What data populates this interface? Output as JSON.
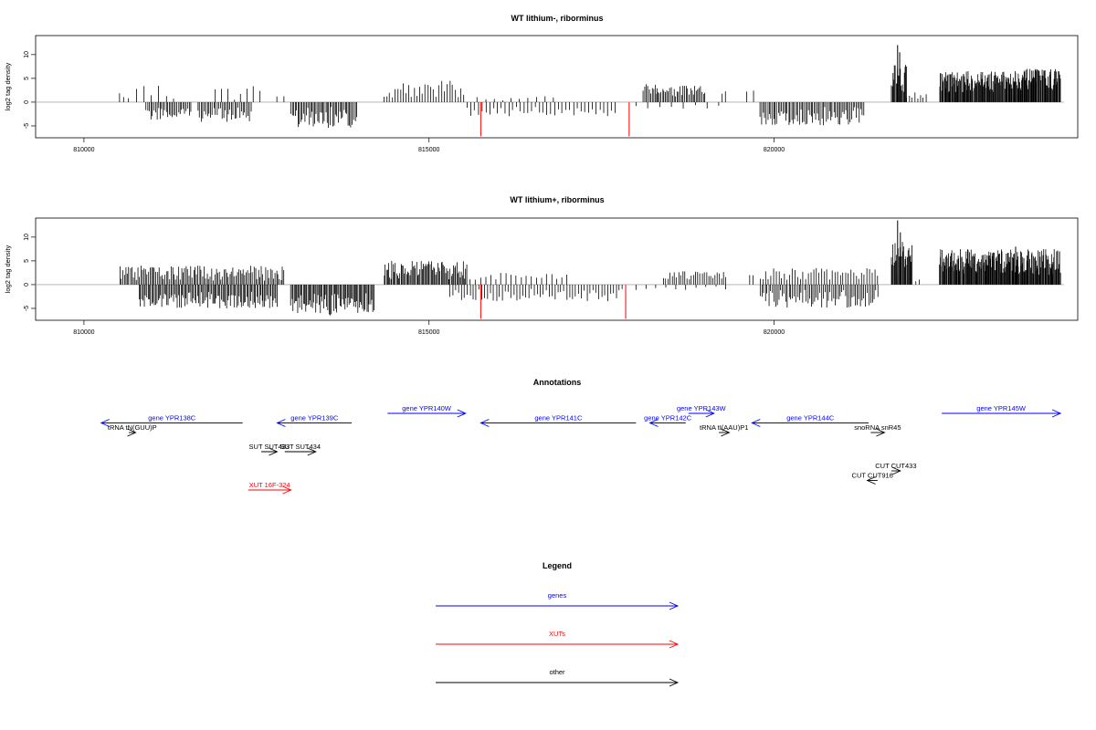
{
  "chart_data": [
    {
      "type": "bar",
      "title": "WT lithium-, riborminus",
      "ylabel": "log2 tag density",
      "xlim": [
        809300,
        824400
      ],
      "ylim": [
        -7.5,
        14
      ],
      "x_ticks": [
        810000,
        815000,
        820000
      ],
      "y_ticks": [
        -5,
        0,
        5,
        10
      ],
      "baseline_range": [
        809300,
        824200
      ],
      "segments": [
        {
          "start": 810520,
          "end": 810570,
          "strand": "+",
          "lo": 1.0,
          "hi": 2.0,
          "n": 2
        },
        {
          "start": 810650,
          "end": 811300,
          "strand": "+",
          "lo": 0.5,
          "hi": 4,
          "n": 7
        },
        {
          "start": 810900,
          "end": 811550,
          "strand": "-",
          "lo": 1.0,
          "hi": 3.8,
          "n": 30
        },
        {
          "start": 811650,
          "end": 812420,
          "strand": "-",
          "lo": 1.0,
          "hi": 4.2,
          "n": 34
        },
        {
          "start": 811900,
          "end": 812550,
          "strand": "+",
          "lo": 0.5,
          "hi": 3.5,
          "n": 8
        },
        {
          "start": 812800,
          "end": 812900,
          "strand": "+",
          "lo": 1.0,
          "hi": 2.0,
          "n": 2
        },
        {
          "start": 813000,
          "end": 813950,
          "strand": "-",
          "lo": 1.0,
          "hi": 5.5,
          "n": 48
        },
        {
          "start": 814350,
          "end": 815500,
          "strand": "+",
          "lo": 0.8,
          "hi": 4.5,
          "n": 30
        },
        {
          "start": 815550,
          "end": 817700,
          "strand": "-",
          "lo": 0.8,
          "hi": 3.0,
          "n": 40
        },
        {
          "start": 815700,
          "end": 816800,
          "strand": "+",
          "lo": 0.3,
          "hi": 1.5,
          "n": 10
        },
        {
          "start": 818100,
          "end": 818300,
          "strand": "+",
          "lo": 1.5,
          "hi": 4.2,
          "n": 10
        },
        {
          "start": 818300,
          "end": 819000,
          "strand": "+",
          "lo": 1.0,
          "hi": 3.5,
          "n": 34
        },
        {
          "start": 818000,
          "end": 819200,
          "strand": "-",
          "lo": 0.3,
          "hi": 1.5,
          "n": 8
        },
        {
          "start": 819250,
          "end": 819300,
          "strand": "+",
          "lo": 1.5,
          "hi": 2.5,
          "n": 2
        },
        {
          "start": 819600,
          "end": 819700,
          "strand": "+",
          "lo": 1.5,
          "hi": 2.5,
          "n": 2
        },
        {
          "start": 819800,
          "end": 821300,
          "strand": "-",
          "lo": 1.0,
          "hi": 5.0,
          "n": 70
        },
        {
          "start": 821700,
          "end": 821920,
          "strand": "+",
          "lo": 2.0,
          "hi": 8.5,
          "n": 20
        },
        {
          "start": 821920,
          "end": 822200,
          "strand": "+",
          "lo": 0.5,
          "hi": 2.5,
          "n": 8
        },
        {
          "start": 822400,
          "end": 823400,
          "strand": "+",
          "lo": 2.0,
          "hi": 6.5,
          "n": 110
        },
        {
          "start": 823400,
          "end": 824150,
          "strand": "+",
          "lo": 2.5,
          "hi": 7.0,
          "n": 90
        }
      ],
      "spikes": [
        {
          "x": 821790,
          "value": 12.0
        },
        {
          "x": 821820,
          "value": 10.5
        }
      ],
      "highlights": [
        {
          "x": 815750,
          "value": -7.2,
          "color": "#ff0000"
        },
        {
          "x": 817900,
          "value": -7.2,
          "color": "#ff0000"
        }
      ]
    },
    {
      "type": "bar",
      "title": "WT lithium+, riborminus",
      "ylabel": "log2 tag density",
      "xlim": [
        809300,
        824400
      ],
      "ylim": [
        -7.5,
        14
      ],
      "x_ticks": [
        810000,
        815000,
        820000
      ],
      "y_ticks": [
        -5,
        0,
        5,
        10
      ],
      "baseline_range": [
        809300,
        824200
      ],
      "segments": [
        {
          "start": 810520,
          "end": 812900,
          "strand": "+",
          "lo": 0.8,
          "hi": 4.0,
          "n": 110
        },
        {
          "start": 810800,
          "end": 812800,
          "strand": "-",
          "lo": 1.5,
          "hi": 5.0,
          "n": 110
        },
        {
          "start": 813000,
          "end": 814200,
          "strand": "-",
          "lo": 1.5,
          "hi": 6.5,
          "n": 75
        },
        {
          "start": 814350,
          "end": 815550,
          "strand": "+",
          "lo": 1.0,
          "hi": 5.0,
          "n": 75
        },
        {
          "start": 815300,
          "end": 817800,
          "strand": "-",
          "lo": 0.8,
          "hi": 3.5,
          "n": 60
        },
        {
          "start": 815600,
          "end": 817000,
          "strand": "+",
          "lo": 0.5,
          "hi": 2.5,
          "n": 20
        },
        {
          "start": 818400,
          "end": 819300,
          "strand": "+",
          "lo": 1.0,
          "hi": 2.8,
          "n": 30
        },
        {
          "start": 818000,
          "end": 819300,
          "strand": "-",
          "lo": 0.3,
          "hi": 1.2,
          "n": 10
        },
        {
          "start": 819650,
          "end": 819700,
          "strand": "+",
          "lo": 1.5,
          "hi": 2.5,
          "n": 2
        },
        {
          "start": 819800,
          "end": 821500,
          "strand": "+",
          "lo": 0.8,
          "hi": 3.5,
          "n": 45
        },
        {
          "start": 819800,
          "end": 821500,
          "strand": "-",
          "lo": 1.0,
          "hi": 5.0,
          "n": 70
        },
        {
          "start": 821700,
          "end": 822000,
          "strand": "+",
          "lo": 2.0,
          "hi": 9.0,
          "n": 28
        },
        {
          "start": 822050,
          "end": 822100,
          "strand": "+",
          "lo": 0.5,
          "hi": 1.2,
          "n": 2
        },
        {
          "start": 822400,
          "end": 824150,
          "strand": "+",
          "lo": 2.0,
          "hi": 7.5,
          "n": 200
        }
      ],
      "spikes": [
        {
          "x": 821790,
          "value": 13.5
        },
        {
          "x": 821830,
          "value": 11.0
        },
        {
          "x": 823500,
          "value": 8.0
        }
      ],
      "highlights": [
        {
          "x": 815750,
          "value": -7.2,
          "color": "#ff0000"
        },
        {
          "x": 817850,
          "value": -7.2,
          "color": "#ff0000"
        }
      ]
    }
  ],
  "annotations": {
    "title": "Annotations",
    "features": [
      {
        "label": "tRNA tN(GUU)P",
        "start": 810650,
        "end": 810750,
        "strand": "+",
        "row": 2,
        "category": "other"
      },
      {
        "label": "gene YPR138C",
        "start": 810250,
        "end": 812300,
        "strand": "-",
        "row": 1,
        "category": "gene"
      },
      {
        "label": "gene YPR139C",
        "start": 812800,
        "end": 813880,
        "strand": "-",
        "row": 1,
        "category": "gene"
      },
      {
        "label": "gene YPR140W",
        "start": 814400,
        "end": 815530,
        "strand": "+",
        "row": 0,
        "category": "gene"
      },
      {
        "label": "gene YPR141C",
        "start": 815750,
        "end": 818000,
        "strand": "-",
        "row": 1,
        "category": "gene"
      },
      {
        "label": "gene YPR143W",
        "start": 818760,
        "end": 819130,
        "strand": "+",
        "row": 0,
        "category": "gene"
      },
      {
        "label": "gene YPR142C",
        "start": 818200,
        "end": 818720,
        "strand": "-",
        "row": 1,
        "category": "gene"
      },
      {
        "label": "tRNA tI(AAU)P1",
        "start": 819200,
        "end": 819350,
        "strand": "+",
        "row": 2,
        "category": "other"
      },
      {
        "label": "gene YPR144C",
        "start": 819680,
        "end": 821370,
        "strand": "-",
        "row": 1,
        "category": "gene"
      },
      {
        "label": "snoRNA snR45",
        "start": 821400,
        "end": 821600,
        "strand": "+",
        "row": 2,
        "category": "other"
      },
      {
        "label": "gene YPR145W",
        "start": 822430,
        "end": 824150,
        "strand": "+",
        "row": 0,
        "category": "gene"
      },
      {
        "label": "SUT SUT433",
        "start": 812570,
        "end": 812800,
        "strand": "+",
        "row": 4,
        "category": "other"
      },
      {
        "label": "SUT SUT434",
        "start": 812910,
        "end": 813360,
        "strand": "+",
        "row": 4,
        "category": "other"
      },
      {
        "label": "XUT 16F-324",
        "start": 812380,
        "end": 813000,
        "strand": "+",
        "row": 8,
        "category": "xut"
      },
      {
        "label": "CUT CUT433",
        "start": 821700,
        "end": 821830,
        "strand": "+",
        "row": 6,
        "category": "other"
      },
      {
        "label": "CUT CUT916",
        "start": 821350,
        "end": 821500,
        "strand": "-",
        "row": 7,
        "category": "other"
      }
    ]
  },
  "legend": {
    "title": "Legend",
    "items": [
      {
        "label": "genes",
        "color": "#0000ff"
      },
      {
        "label": "XUTs",
        "color": "#ff0000"
      },
      {
        "label": "other",
        "color": "#000000"
      }
    ]
  },
  "colors": {
    "gene": "#0000ff",
    "xut": "#ff0000",
    "other": "#000000",
    "baseline": "#aaaaaa"
  }
}
